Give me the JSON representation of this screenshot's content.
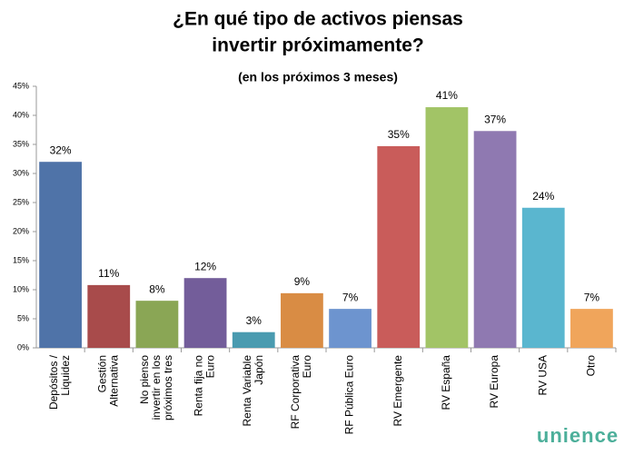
{
  "chart_data": {
    "type": "bar",
    "title": [
      "¿En qué tipo de activos piensas",
      "invertir próximamente?"
    ],
    "subtitle": "(en los próximos 3 meses)",
    "categories": [
      "Depósitos /\nLiquidez",
      "Gestión\nAlternativa",
      "No pienso\ninvertir en los\npróximos tres",
      "Renta fija no\nEuro",
      "Renta Variable\nJapón",
      "RF Corporativa\nEuro",
      "RF Pública Euro",
      "RV Emergente",
      "RV España",
      "RV Europa",
      "RV USA",
      "Otro"
    ],
    "values": [
      32,
      10.8,
      8.1,
      12,
      2.7,
      9.4,
      6.7,
      34.7,
      41.4,
      37.3,
      24.1,
      6.7
    ],
    "value_labels": [
      "32%",
      "11%",
      "8%",
      "12%",
      "3%",
      "9%",
      "7%",
      "35%",
      "41%",
      "37%",
      "24%",
      "7%"
    ],
    "colors": [
      "#4f73a8",
      "#a84b4b",
      "#8aa655",
      "#735d9a",
      "#4a9bb0",
      "#d98c44",
      "#6d94cf",
      "#c95c5a",
      "#a2c466",
      "#8f79b1",
      "#5ab6cf",
      "#f0a55b"
    ],
    "ylim": [
      0,
      45
    ],
    "yticks": [
      {
        "value": 0,
        "label": "0%"
      },
      {
        "value": 5,
        "label": "5%"
      },
      {
        "value": 10,
        "label": "10%"
      },
      {
        "value": 15,
        "label": "15%"
      },
      {
        "value": 20,
        "label": "20%"
      },
      {
        "value": 25,
        "label": "25%"
      },
      {
        "value": 30,
        "label": "30%"
      },
      {
        "value": 35,
        "label": "35%"
      },
      {
        "value": 40,
        "label": "40%"
      },
      {
        "value": 45,
        "label": "45%"
      }
    ],
    "grid": false,
    "logo": "unience"
  }
}
